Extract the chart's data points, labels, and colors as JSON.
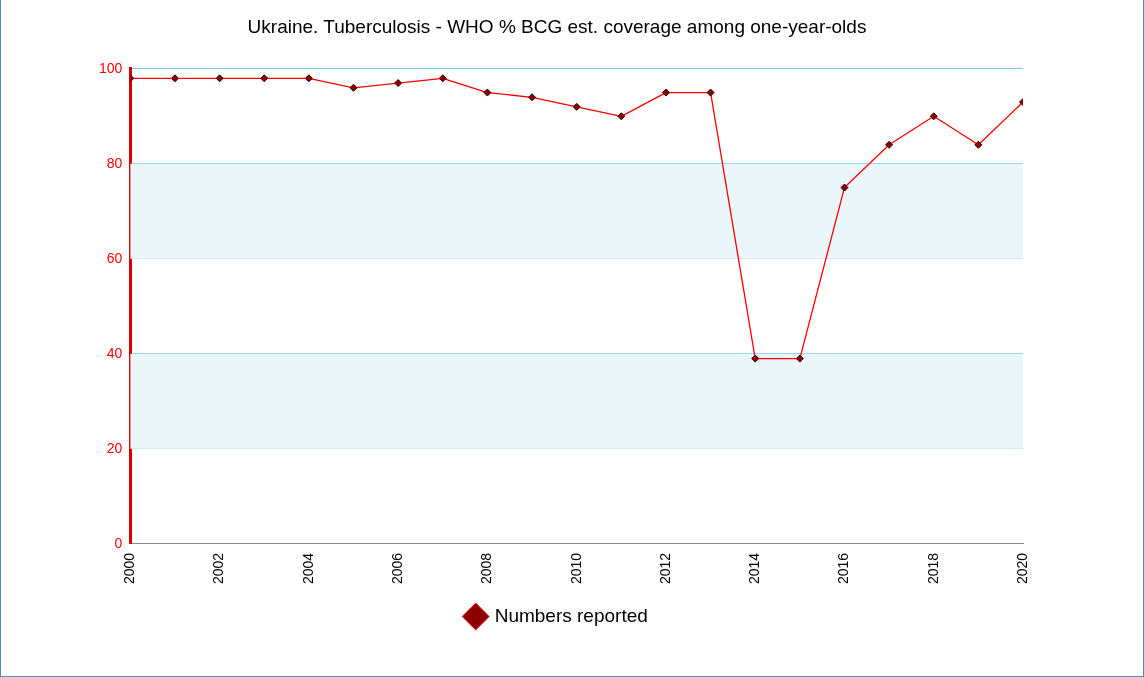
{
  "chart_data": {
    "type": "line",
    "title": "Ukraine. Tuberculosis - WHO % BCG est. coverage among one-year-olds",
    "x": [
      2000,
      2001,
      2002,
      2003,
      2004,
      2005,
      2006,
      2007,
      2008,
      2009,
      2010,
      2011,
      2012,
      2013,
      2014,
      2015,
      2016,
      2017,
      2018,
      2019,
      2020
    ],
    "series": [
      {
        "name": "Numbers reported",
        "color": "#ff0000",
        "values": [
          98,
          98,
          98,
          98,
          98,
          96,
          97,
          98,
          95,
          94,
          92,
          90,
          95,
          95,
          39,
          39,
          75,
          84,
          90,
          84,
          93
        ]
      }
    ],
    "xlim": [
      2000,
      2020
    ],
    "xticks": [
      2000,
      2002,
      2004,
      2006,
      2008,
      2010,
      2012,
      2014,
      2016,
      2018,
      2020
    ],
    "ylim": [
      0,
      100
    ],
    "yticks": [
      0,
      20,
      40,
      60,
      80,
      100
    ],
    "bands": [
      {
        "axis": "y",
        "from": 20,
        "to": 40,
        "color": "#ebf6fb"
      },
      {
        "axis": "y",
        "from": 60,
        "to": 80,
        "color": "#ebf6fb"
      }
    ],
    "grid": "y",
    "legend": "bottom",
    "marker": "diamond",
    "line_style": "solid"
  }
}
